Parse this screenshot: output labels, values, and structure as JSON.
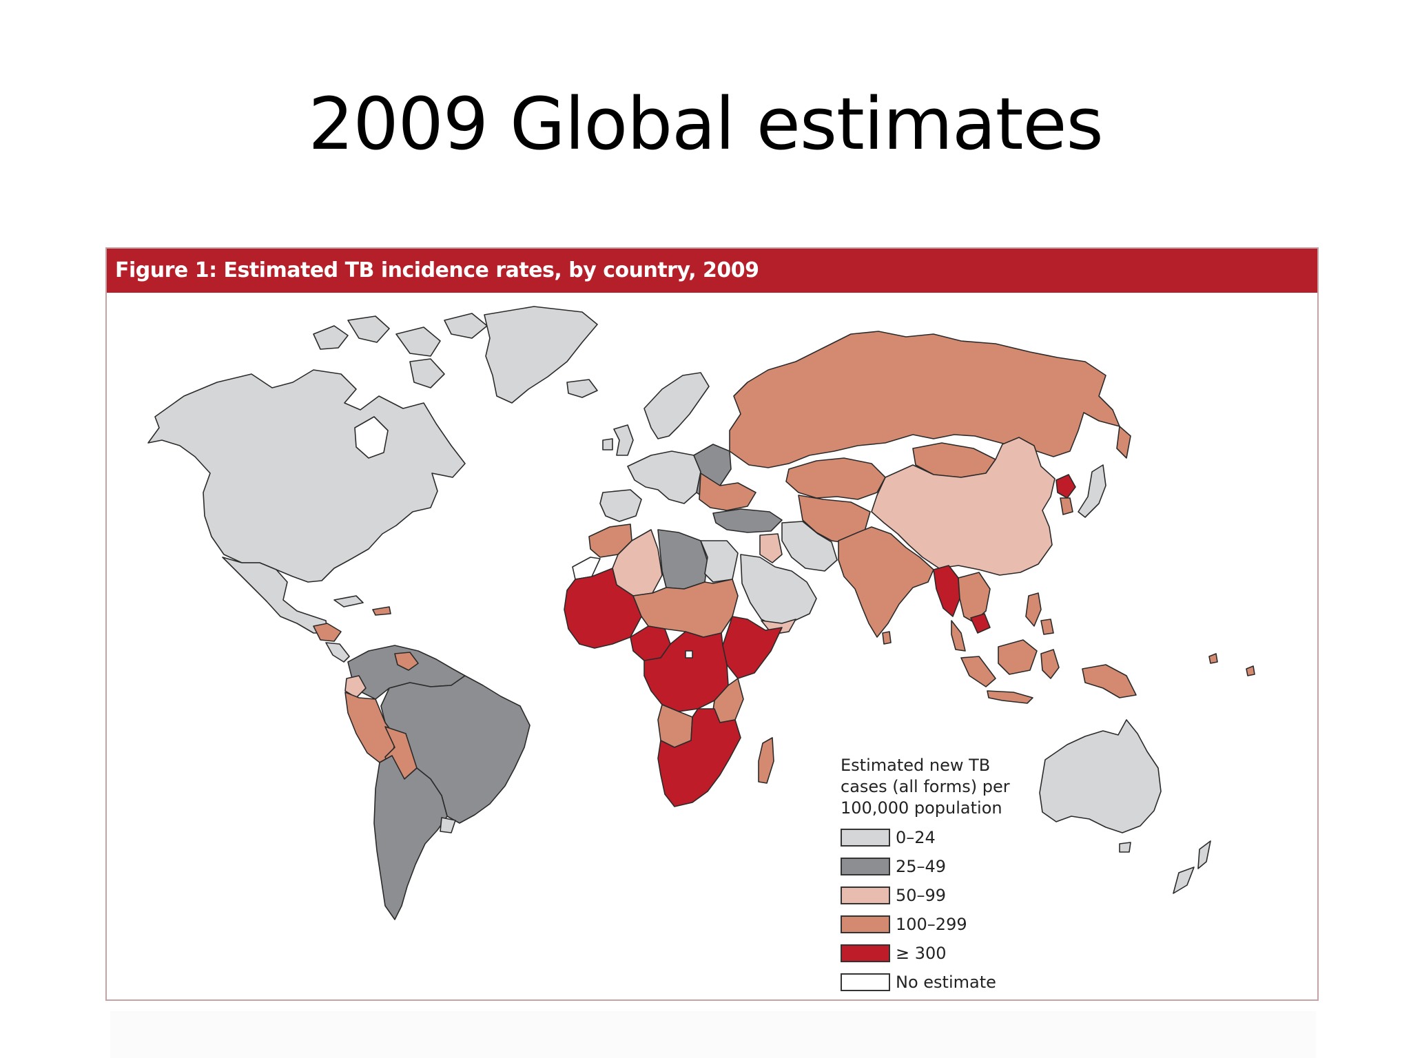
{
  "slide": {
    "title": "2009 Global estimates"
  },
  "figure": {
    "header": "Figure 1:  Estimated TB incidence rates, by country, 2009",
    "colors": {
      "header_bg": "#b41f2a",
      "frame_border": "#c7a2a4",
      "ocean": "#ffffff",
      "border_stroke": "#2a2a2a"
    }
  },
  "legend": {
    "title_lines": [
      "Estimated new TB",
      "cases (all forms) per",
      "100,000 population"
    ],
    "categories": [
      {
        "label": "0–24",
        "color": "#d4d6d8"
      },
      {
        "label": "25–49",
        "color": "#8c8e91"
      },
      {
        "label": "50–99",
        "color": "#e8bcae"
      },
      {
        "label": "100–299",
        "color": "#d48a71"
      },
      {
        "label": "≥ 300",
        "color": "#bd1c28"
      },
      {
        "label": "No estimate",
        "color": "#ffffff"
      }
    ]
  },
  "map_regions": [
    {
      "region": "North America",
      "category": "0–24"
    },
    {
      "region": "Greenland",
      "category": "0–24"
    },
    {
      "region": "Mexico and Central America",
      "category": "0–24"
    },
    {
      "region": "Guatemala and Honduras",
      "category": "100–299"
    },
    {
      "region": "Northern South America",
      "category": "25–49"
    },
    {
      "region": "Brazil",
      "category": "25–49"
    },
    {
      "region": "Peru",
      "category": "100–299"
    },
    {
      "region": "Bolivia",
      "category": "100–299"
    },
    {
      "region": "Ecuador",
      "category": "50–99"
    },
    {
      "region": "Guyana",
      "category": "100–299"
    },
    {
      "region": "Argentina and Chile",
      "category": "25–49"
    },
    {
      "region": "Uruguay",
      "category": "0–24"
    },
    {
      "region": "Western Europe",
      "category": "0–24"
    },
    {
      "region": "Scandinavia",
      "category": "0–24"
    },
    {
      "region": "Iberia",
      "category": "0–24"
    },
    {
      "region": "Eastern Europe",
      "category": "25–49"
    },
    {
      "region": "Ukraine and Romania",
      "category": "100–299"
    },
    {
      "region": "Turkey",
      "category": "25–49"
    },
    {
      "region": "Russia",
      "category": "100–299"
    },
    {
      "region": "Kazakhstan",
      "category": "100–299"
    },
    {
      "region": "Mongolia",
      "category": "100–299"
    },
    {
      "region": "Central Asia and Afghanistan",
      "category": "100–299"
    },
    {
      "region": "Iran",
      "category": "0–24"
    },
    {
      "region": "Arabian Peninsula",
      "category": "0–24"
    },
    {
      "region": "Iraq",
      "category": "50–99"
    },
    {
      "region": "Yemen",
      "category": "50–99"
    },
    {
      "region": "China",
      "category": "50–99"
    },
    {
      "region": "North Korea",
      "category": "≥ 300"
    },
    {
      "region": "South Korea",
      "category": "100–299"
    },
    {
      "region": "Japan",
      "category": "0–24"
    },
    {
      "region": "India and Pakistan",
      "category": "100–299"
    },
    {
      "region": "Myanmar",
      "category": "≥ 300"
    },
    {
      "region": "Cambodia",
      "category": "≥ 300"
    },
    {
      "region": "Southeast Asia",
      "category": "100–299"
    },
    {
      "region": "Philippines",
      "category": "100–299"
    },
    {
      "region": "Indonesia and Malaysia",
      "category": "100–299"
    },
    {
      "region": "Papua New Guinea",
      "category": "100–299"
    },
    {
      "region": "Australia",
      "category": "0–24"
    },
    {
      "region": "New Zealand",
      "category": "0–24"
    },
    {
      "region": "Morocco",
      "category": "100–299"
    },
    {
      "region": "Algeria",
      "category": "50–99"
    },
    {
      "region": "Libya",
      "category": "25–49"
    },
    {
      "region": "Egypt",
      "category": "0–24"
    },
    {
      "region": "Western Sahara",
      "category": "No estimate"
    },
    {
      "region": "West Africa",
      "category": "≥ 300"
    },
    {
      "region": "Niger, Chad and Sudan",
      "category": "100–299"
    },
    {
      "region": "Nigeria",
      "category": "≥ 300"
    },
    {
      "region": "Horn of Africa",
      "category": "≥ 300"
    },
    {
      "region": "Central Africa",
      "category": "≥ 300"
    },
    {
      "region": "Tanzania",
      "category": "100–299"
    },
    {
      "region": "Angola",
      "category": "100–299"
    },
    {
      "region": "Southern Africa",
      "category": "≥ 300"
    },
    {
      "region": "Madagascar",
      "category": "100–299"
    }
  ]
}
